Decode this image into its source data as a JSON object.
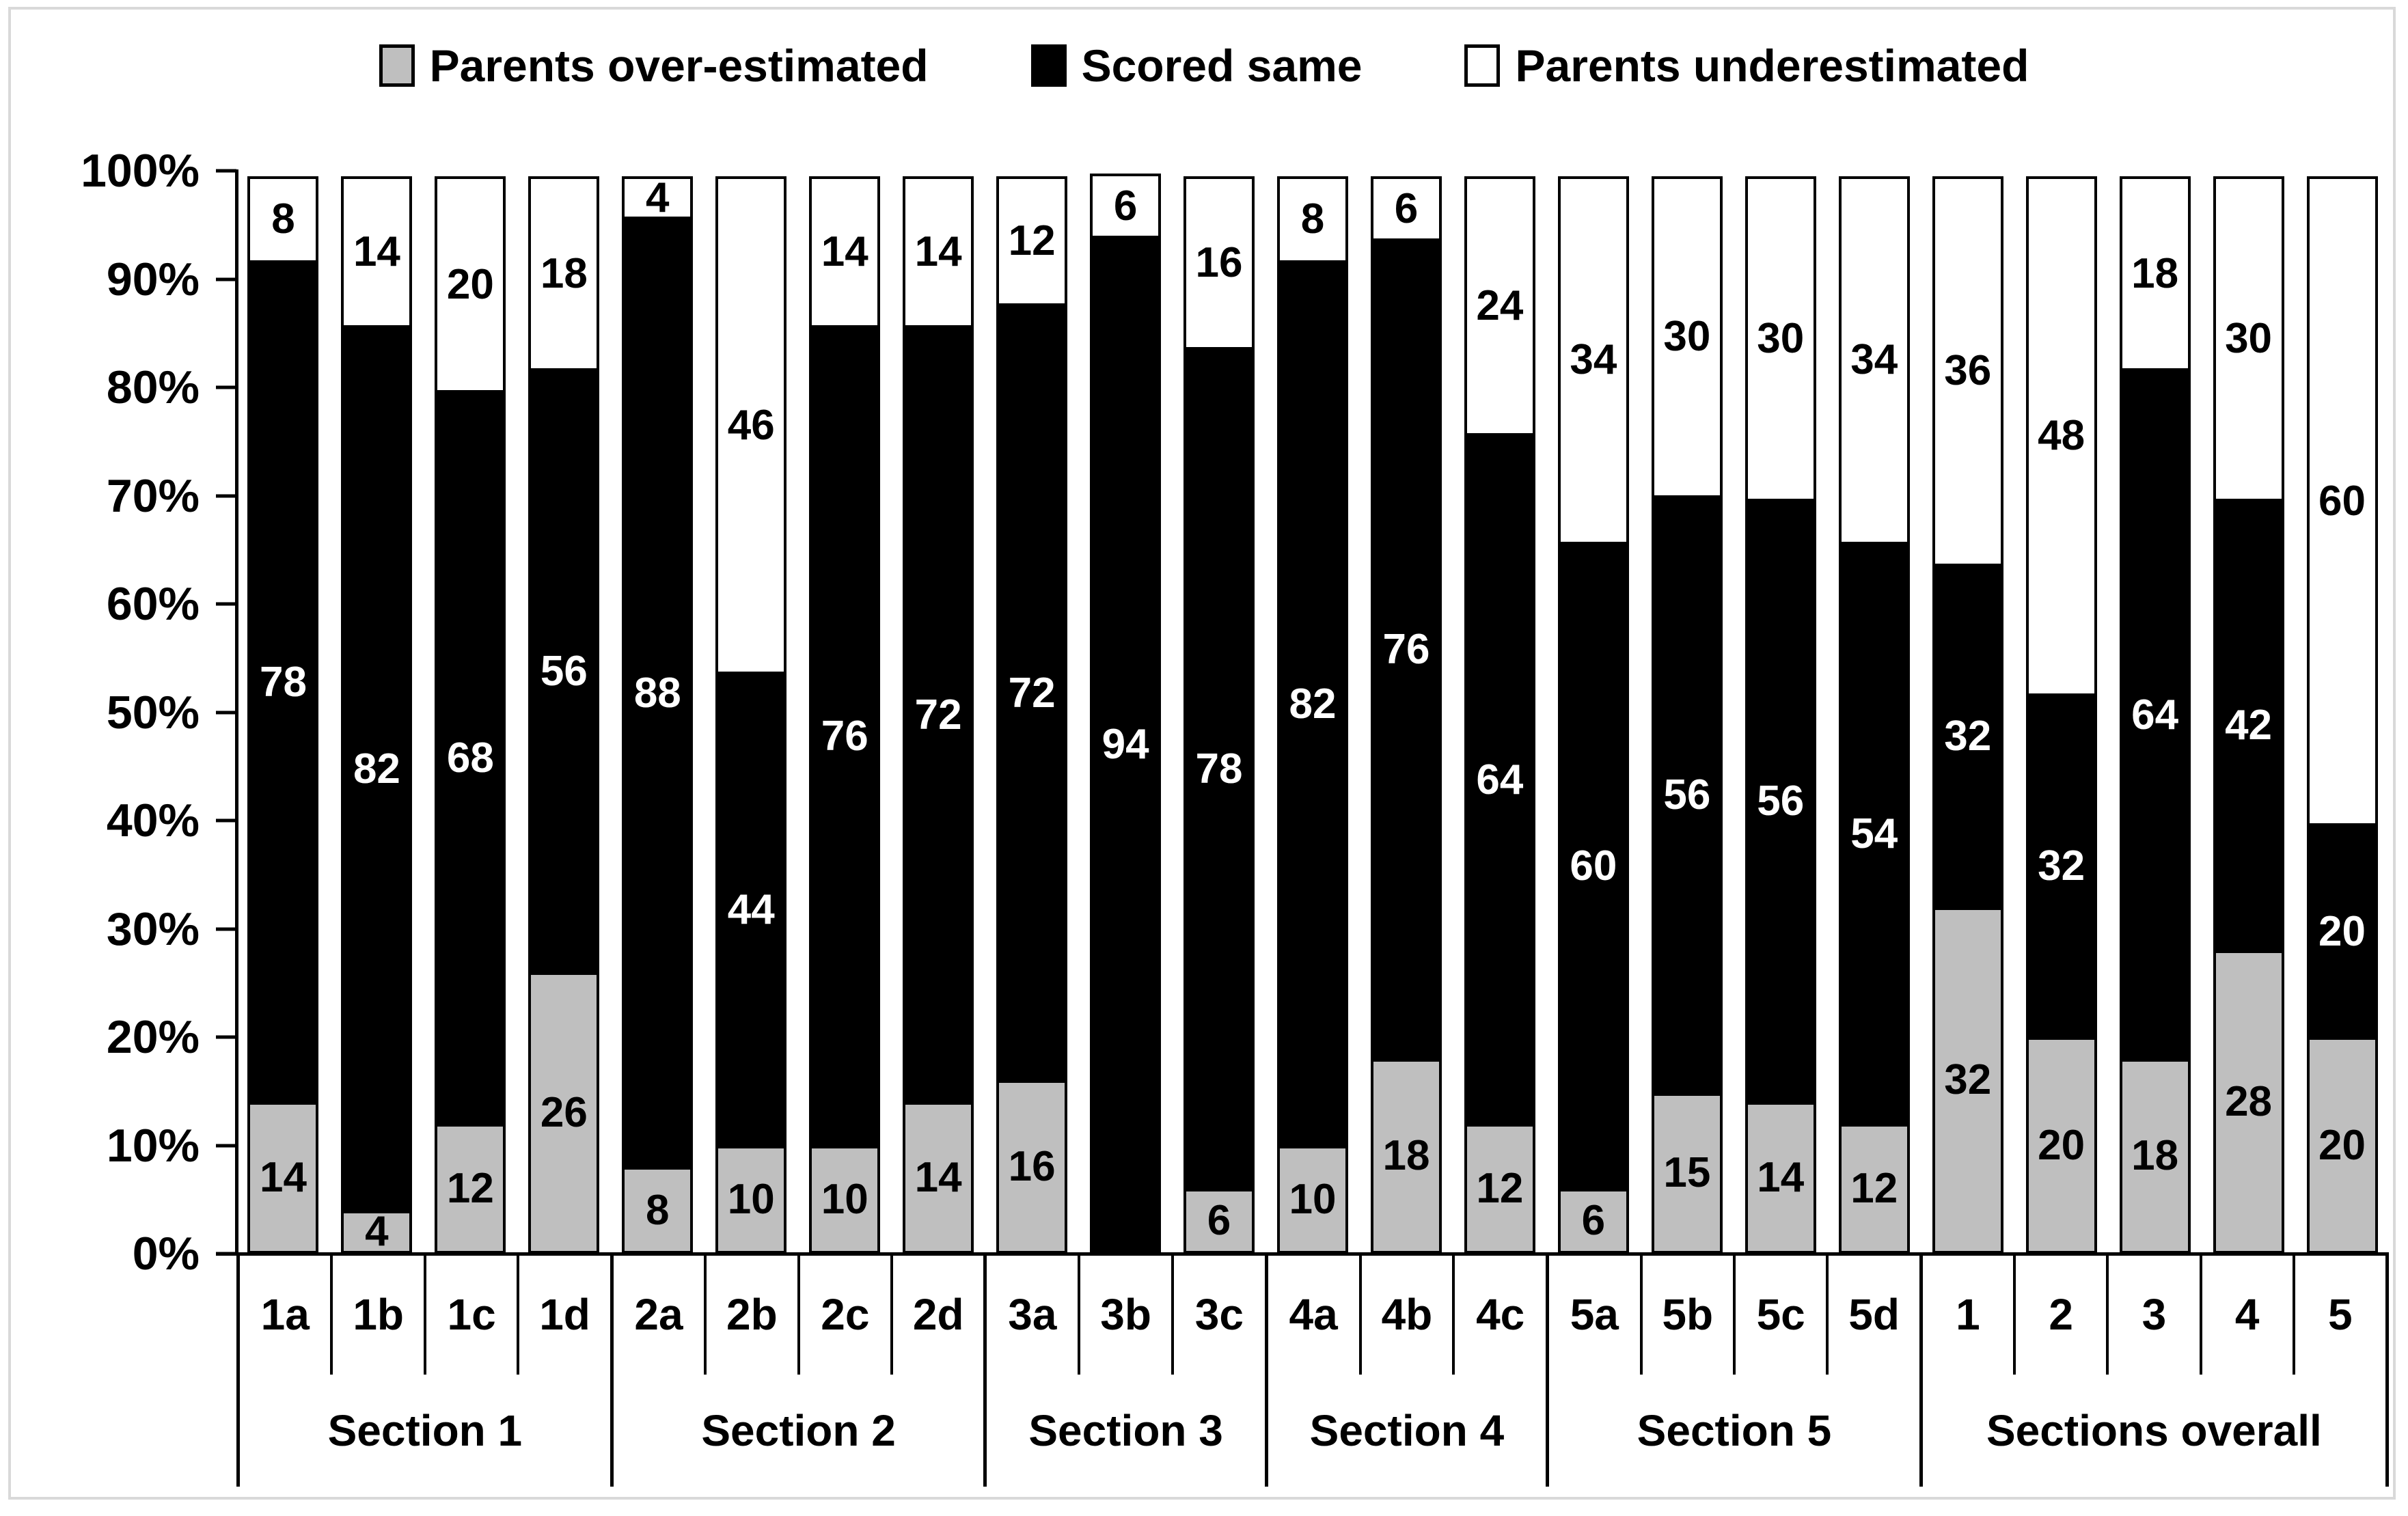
{
  "legend": {
    "items": [
      {
        "label": "Parents over-estimated",
        "color": "#bfbfbf"
      },
      {
        "label": "Scored same",
        "color": "#000000"
      },
      {
        "label": "Parents underestimated",
        "color": "#ffffff"
      }
    ]
  },
  "chart_data": {
    "type": "bar",
    "subtype": "stacked-100-percent-column",
    "title": "",
    "xlabel": "",
    "ylabel": "",
    "ylim": [
      0,
      100
    ],
    "grid": false,
    "legend_position": "top",
    "y_ticks": [
      {
        "value": 100,
        "label": "100%"
      },
      {
        "value": 90,
        "label": "90%"
      },
      {
        "value": 80,
        "label": "80%"
      },
      {
        "value": 70,
        "label": "70%"
      },
      {
        "value": 60,
        "label": "60%"
      },
      {
        "value": 50,
        "label": "50%"
      },
      {
        "value": 40,
        "label": "40%"
      },
      {
        "value": 30,
        "label": "30%"
      },
      {
        "value": 20,
        "label": "20%"
      },
      {
        "value": 10,
        "label": "10%"
      },
      {
        "value": 0,
        "label": "0%"
      }
    ],
    "series_order": [
      "under",
      "same",
      "over"
    ],
    "series_names": {
      "over": "Parents over-estimated",
      "same": "Scored same",
      "under": "Parents underestimated"
    },
    "colors": {
      "over": "#bfbfbf",
      "same": "#000000",
      "under": "#ffffff",
      "border": "#000000"
    },
    "sections": [
      {
        "label": "Section 1",
        "bars": [
          {
            "category": "1a",
            "over": 14,
            "same": 78,
            "under": 8
          },
          {
            "category": "1b",
            "over": 4,
            "same": 82,
            "under": 14
          },
          {
            "category": "1c",
            "over": 12,
            "same": 68,
            "under": 20
          },
          {
            "category": "1d",
            "over": 26,
            "same": 56,
            "under": 18
          }
        ]
      },
      {
        "label": "Section 2",
        "bars": [
          {
            "category": "2a",
            "over": 8,
            "same": 88,
            "under": 4
          },
          {
            "category": "2b",
            "over": 10,
            "same": 44,
            "under": 46
          },
          {
            "category": "2c",
            "over": 10,
            "same": 76,
            "under": 14
          },
          {
            "category": "2d",
            "over": 14,
            "same": 72,
            "under": 14
          }
        ]
      },
      {
        "label": "Section 3",
        "bars": [
          {
            "category": "3a",
            "over": 16,
            "same": 72,
            "under": 12
          },
          {
            "category": "3b",
            "over": 0,
            "same": 94,
            "under": 6
          },
          {
            "category": "3c",
            "over": 6,
            "same": 78,
            "under": 16
          }
        ]
      },
      {
        "label": "Section 4",
        "bars": [
          {
            "category": "4a",
            "over": 10,
            "same": 82,
            "under": 8
          },
          {
            "category": "4b",
            "over": 18,
            "same": 76,
            "under": 6
          },
          {
            "category": "4c",
            "over": 12,
            "same": 64,
            "under": 24
          }
        ]
      },
      {
        "label": "Section 5",
        "bars": [
          {
            "category": "5a",
            "over": 6,
            "same": 60,
            "under": 34
          },
          {
            "category": "5b",
            "over": 15,
            "same": 56,
            "under": 30
          },
          {
            "category": "5c",
            "over": 14,
            "same": 56,
            "under": 30
          },
          {
            "category": "5d",
            "over": 12,
            "same": 54,
            "under": 34
          }
        ]
      },
      {
        "label": "Sections overall",
        "bars": [
          {
            "category": "1",
            "over": 32,
            "same": 32,
            "under": 36
          },
          {
            "category": "2",
            "over": 20,
            "same": 32,
            "under": 48
          },
          {
            "category": "3",
            "over": 18,
            "same": 64,
            "under": 18
          },
          {
            "category": "4",
            "over": 28,
            "same": 42,
            "under": 30
          },
          {
            "category": "5",
            "over": 20,
            "same": 20,
            "under": 60
          }
        ]
      }
    ]
  }
}
